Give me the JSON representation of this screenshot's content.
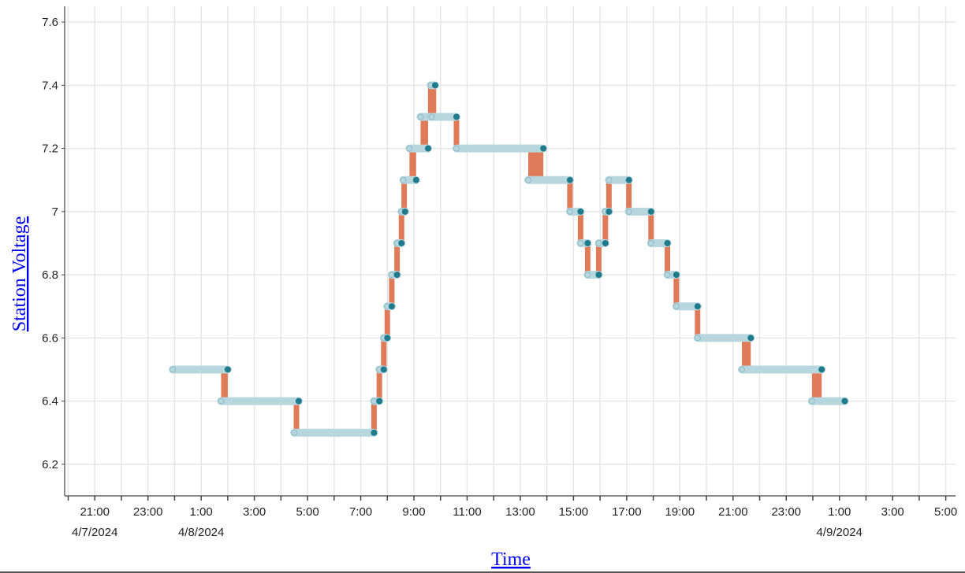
{
  "chart_data": {
    "type": "line",
    "xlabel": "Time",
    "ylabel": "Station Voltage",
    "ylim": [
      6.1,
      7.65
    ],
    "yticks": [
      6.2,
      6.4,
      6.6,
      6.8,
      7,
      7.2,
      7.4,
      7.6
    ],
    "xlim": [
      "2024-04-07 19:52",
      "2024-04-09 05:22"
    ],
    "grid": true,
    "x_tick_labels": [
      {
        "time": "2024-04-07 21:00",
        "label": "21:00",
        "date": "4/7/2024"
      },
      {
        "time": "2024-04-07 23:00",
        "label": "23:00",
        "date": ""
      },
      {
        "time": "2024-04-08 01:00",
        "label": "1:00",
        "date": "4/8/2024"
      },
      {
        "time": "2024-04-08 03:00",
        "label": "3:00",
        "date": ""
      },
      {
        "time": "2024-04-08 05:00",
        "label": "5:00",
        "date": ""
      },
      {
        "time": "2024-04-08 07:00",
        "label": "7:00",
        "date": ""
      },
      {
        "time": "2024-04-08 09:00",
        "label": "9:00",
        "date": ""
      },
      {
        "time": "2024-04-08 11:00",
        "label": "11:00",
        "date": ""
      },
      {
        "time": "2024-04-08 13:00",
        "label": "13:00",
        "date": ""
      },
      {
        "time": "2024-04-08 15:00",
        "label": "15:00",
        "date": ""
      },
      {
        "time": "2024-04-08 17:00",
        "label": "17:00",
        "date": ""
      },
      {
        "time": "2024-04-08 19:00",
        "label": "19:00",
        "date": ""
      },
      {
        "time": "2024-04-08 21:00",
        "label": "21:00",
        "date": ""
      },
      {
        "time": "2024-04-08 23:00",
        "label": "23:00",
        "date": ""
      },
      {
        "time": "2024-04-09 01:00",
        "label": "1:00",
        "date": "4/9/2024"
      },
      {
        "time": "2024-04-09 03:00",
        "label": "3:00",
        "date": ""
      },
      {
        "time": "2024-04-09 05:00",
        "label": "5:00",
        "date": ""
      }
    ],
    "steps": [
      {
        "start": "2024-04-07 23:56",
        "end": "2024-04-08 02:00",
        "value": 6.5
      },
      {
        "start": "2024-04-08 01:45",
        "end": "2024-04-08 04:40",
        "value": 6.4
      },
      {
        "start": "2024-04-08 04:30",
        "end": "2024-04-08 07:30",
        "value": 6.3
      },
      {
        "start": "2024-04-08 07:30",
        "end": "2024-04-08 07:42",
        "value": 6.4
      },
      {
        "start": "2024-04-08 07:42",
        "end": "2024-04-08 07:52",
        "value": 6.5
      },
      {
        "start": "2024-04-08 07:52",
        "end": "2024-04-08 08:00",
        "value": 6.6
      },
      {
        "start": "2024-04-08 08:00",
        "end": "2024-04-08 08:10",
        "value": 6.7
      },
      {
        "start": "2024-04-08 08:10",
        "end": "2024-04-08 08:22",
        "value": 6.8
      },
      {
        "start": "2024-04-08 08:22",
        "end": "2024-04-08 08:32",
        "value": 6.9
      },
      {
        "start": "2024-04-08 08:32",
        "end": "2024-04-08 08:40",
        "value": 7.0
      },
      {
        "start": "2024-04-08 08:36",
        "end": "2024-04-08 09:05",
        "value": 7.1
      },
      {
        "start": "2024-04-08 08:50",
        "end": "2024-04-08 09:32",
        "value": 7.2
      },
      {
        "start": "2024-04-08 09:15",
        "end": "2024-04-08 09:38",
        "value": 7.3
      },
      {
        "start": "2024-04-08 09:38",
        "end": "2024-04-08 09:48",
        "value": 7.4
      },
      {
        "start": "2024-04-08 09:40",
        "end": "2024-04-08 10:36",
        "value": 7.3
      },
      {
        "start": "2024-04-08 10:36",
        "end": "2024-04-08 13:52",
        "value": 7.2
      },
      {
        "start": "2024-04-08 13:18",
        "end": "2024-04-08 14:52",
        "value": 7.1
      },
      {
        "start": "2024-04-08 14:52",
        "end": "2024-04-08 15:16",
        "value": 7.0
      },
      {
        "start": "2024-04-08 15:16",
        "end": "2024-04-08 15:32",
        "value": 6.9
      },
      {
        "start": "2024-04-08 15:32",
        "end": "2024-04-08 15:57",
        "value": 6.8
      },
      {
        "start": "2024-04-08 15:57",
        "end": "2024-04-08 16:12",
        "value": 6.9
      },
      {
        "start": "2024-04-08 16:12",
        "end": "2024-04-08 16:20",
        "value": 7.0
      },
      {
        "start": "2024-04-08 16:20",
        "end": "2024-04-08 17:05",
        "value": 7.1
      },
      {
        "start": "2024-04-08 17:05",
        "end": "2024-04-08 17:55",
        "value": 7.0
      },
      {
        "start": "2024-04-08 17:55",
        "end": "2024-04-08 18:32",
        "value": 6.9
      },
      {
        "start": "2024-04-08 18:32",
        "end": "2024-04-08 18:52",
        "value": 6.8
      },
      {
        "start": "2024-04-08 18:52",
        "end": "2024-04-08 19:40",
        "value": 6.7
      },
      {
        "start": "2024-04-08 19:40",
        "end": "2024-04-08 21:40",
        "value": 6.6
      },
      {
        "start": "2024-04-08 21:20",
        "end": "2024-04-09 00:20",
        "value": 6.5
      },
      {
        "start": "2024-04-08 23:58",
        "end": "2024-04-09 01:12",
        "value": 6.4
      }
    ],
    "colors": {
      "plateau": "#b7d6dd",
      "plateau_dot": "#1f7a8c",
      "transition": "#e07b5a",
      "grid": "#e6e6e6",
      "axis": "#444444",
      "link_text": "#0000ee"
    }
  }
}
